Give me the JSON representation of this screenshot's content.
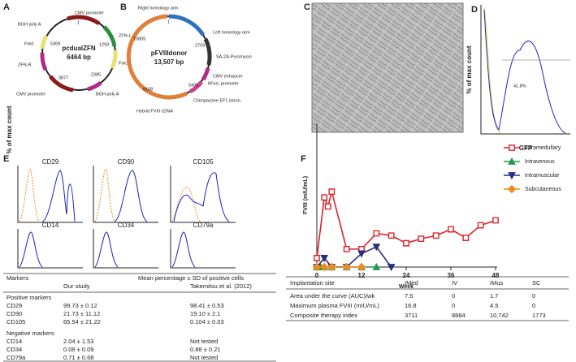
{
  "panels": [
    "A",
    "B",
    "C",
    "D",
    "E",
    "F"
  ],
  "plasmid_a": {
    "name": "pcdualZFN",
    "size": "6464 bp",
    "features": [
      "CMV promoter",
      "ZFN-L",
      "Fok1",
      "BGH poly A",
      "CMV promoter",
      "ZFN-R",
      "Fok1",
      "BGH poly A"
    ],
    "positions": [
      "1",
      "1293",
      "2385",
      "3877",
      "5369"
    ]
  },
  "plasmid_b": {
    "name": "pFVIIIdonor",
    "size": "13,507 bp",
    "features": [
      "Right homology arm",
      "Left homology arm",
      "SA-2A-Puromycin",
      "CMV enhancer",
      "hFerL promoter",
      "Chimpanzee EF1 intron",
      "Hybrid FVIII cDNA"
    ],
    "positions": [
      "1",
      "2703",
      "5405",
      "8108",
      "10805"
    ]
  },
  "histogram_d": {
    "gate_label": "41.8%",
    "x_label": "GFP",
    "y_label": "% of max count"
  },
  "histograms_e": {
    "titles": [
      "CD29",
      "CD90",
      "CD105",
      "CD14",
      "CD34",
      "CD79a"
    ],
    "y_label": "% of max count"
  },
  "marker_table": {
    "header": [
      "Markers",
      "Mean percentage ± SD of positive cells"
    ],
    "subheader": [
      "Our study",
      "Takemitsu et al. (2012)"
    ],
    "groups": [
      {
        "title": "Positive markers",
        "rows": [
          [
            "CD29",
            "99.73 ± 0.12",
            "98.41 ± 0.53"
          ],
          [
            "CD90",
            "21.73 ± 11.12",
            "19.10 ± 2.1"
          ],
          [
            "CD105",
            "65.54 ± 21.22",
            "0.104 ± 0.03"
          ]
        ]
      },
      {
        "title": "Negative markers",
        "rows": [
          [
            "CD14",
            "2.04 ± 1.53",
            "Not tested"
          ],
          [
            "CD34",
            "0.08 ± 0.09",
            "0.88 ± 0.21"
          ],
          [
            "CD79a",
            "0.71 ± 0.68",
            "Not tested"
          ]
        ]
      }
    ]
  },
  "chart_data": {
    "type": "line",
    "x_label": "Week",
    "y_label": "FVIII (mIU/mL)",
    "xlim": [
      0,
      48
    ],
    "xticks": [
      0,
      12,
      24,
      36,
      48
    ],
    "ylim": [
      0,
      32
    ],
    "series": [
      {
        "name": "Intramedullary",
        "color": "#e0202a",
        "marker": "square",
        "x": [
          0,
          2,
          3,
          4,
          8,
          12,
          16,
          20,
          24,
          28,
          32,
          36,
          40,
          44,
          48
        ],
        "values": [
          2,
          15.5,
          13.5,
          16.8,
          4,
          4,
          7.5,
          7,
          5.3,
          6.3,
          7,
          8.4,
          6.5,
          9.3,
          10.4
        ]
      },
      {
        "name": "Intravenous",
        "color": "#1f9a4a",
        "marker": "triangle",
        "x": [
          0,
          1,
          2,
          4,
          8,
          12,
          16
        ],
        "values": [
          0,
          0,
          0,
          0,
          0,
          0,
          0
        ]
      },
      {
        "name": "Intramuscular",
        "color": "#2b2f7e",
        "marker": "triangle-down",
        "x": [
          0,
          2,
          4,
          8,
          12,
          16,
          20
        ],
        "values": [
          0,
          2,
          0,
          0,
          3,
          4.5,
          0
        ]
      },
      {
        "name": "Subcutaneous",
        "color": "#f08a24",
        "marker": "diamond",
        "x": [
          0,
          2,
          4,
          8,
          12
        ],
        "values": [
          0,
          0,
          0,
          0,
          0
        ]
      }
    ],
    "legend": "right"
  },
  "site_table": {
    "header": [
      "Implantation site",
      "IMed",
      "IV",
      "IMus",
      "SC"
    ],
    "rows": [
      [
        "Area under the curve (AUC)/wk",
        "7.5",
        "0",
        "1.7",
        "0"
      ],
      [
        "Maximum plasma FVIII (mIU/mL)",
        "16.8",
        "0",
        "4.5",
        "0"
      ],
      [
        "Composite therapy index",
        "3711",
        "8884",
        "10,742",
        "1773"
      ]
    ]
  }
}
